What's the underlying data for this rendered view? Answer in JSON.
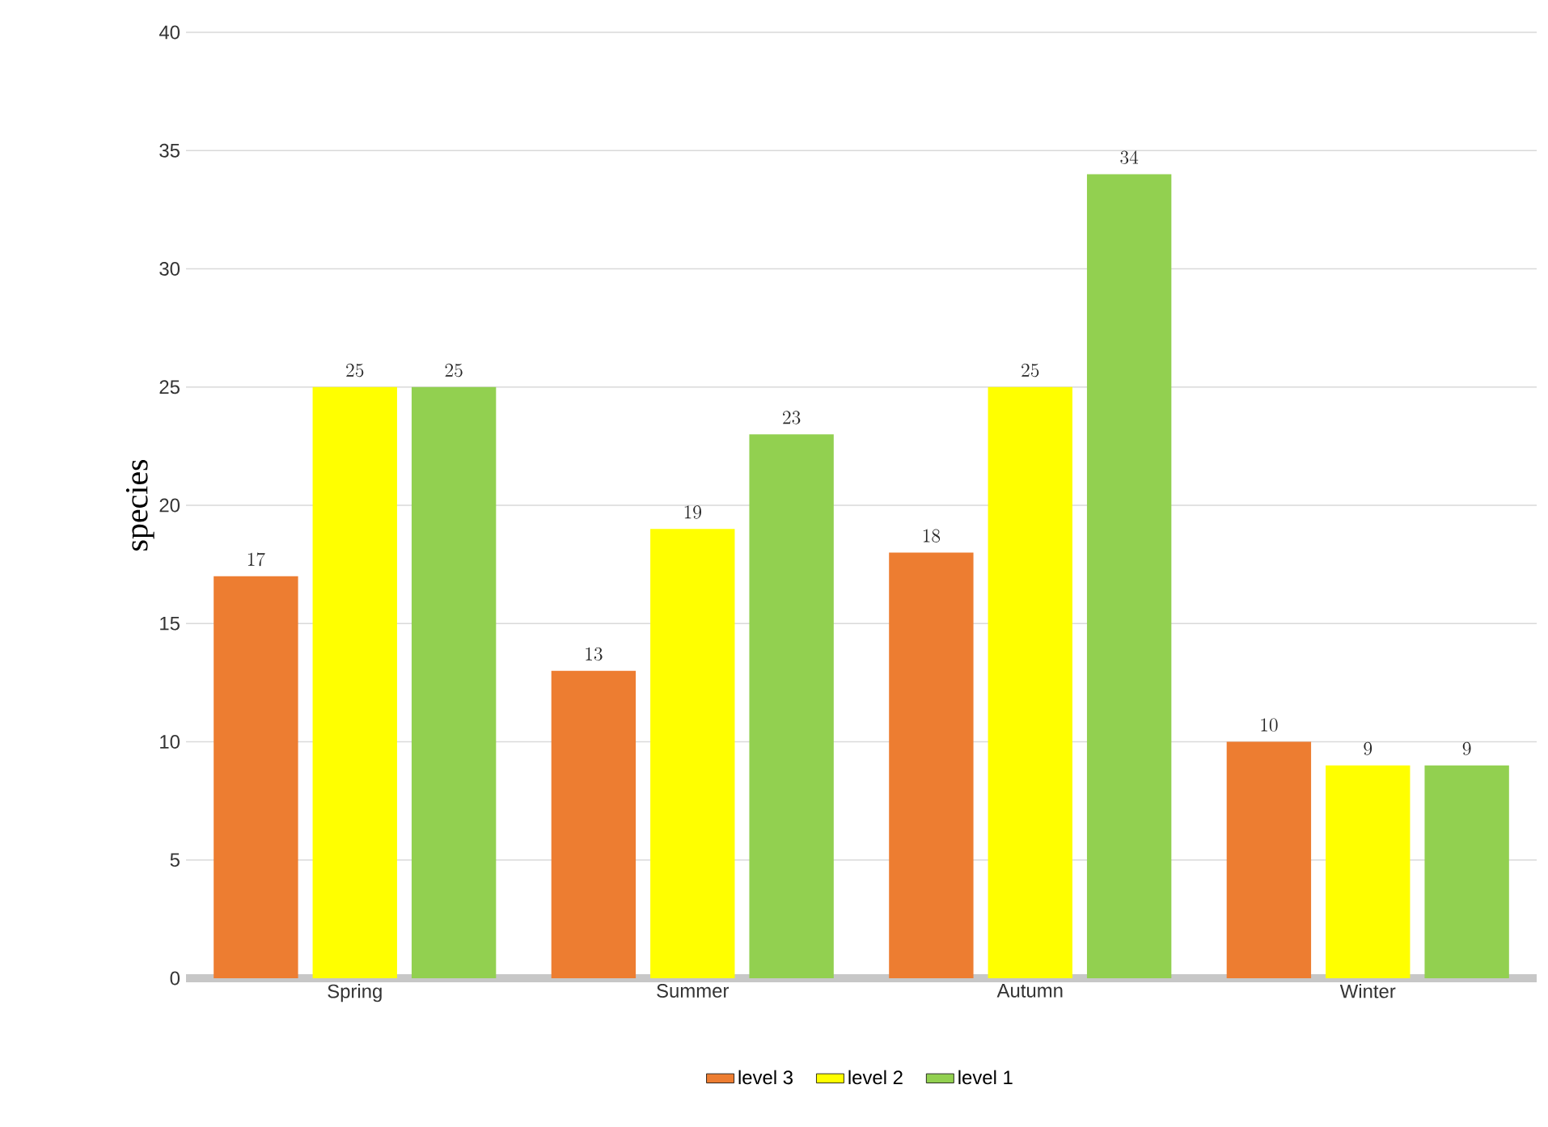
{
  "chart_data": {
    "type": "bar",
    "ylabel": "species",
    "categories": [
      "Spring",
      "Summer",
      "Autumn",
      "Winter"
    ],
    "series": [
      {
        "name": "level 3",
        "color": "#ed7d31",
        "values": [
          17,
          13,
          18,
          10
        ]
      },
      {
        "name": "level 2",
        "color": "#ffff00",
        "values": [
          25,
          19,
          25,
          9
        ]
      },
      {
        "name": "level 1",
        "color": "#92d050",
        "values": [
          25,
          23,
          34,
          9
        ]
      }
    ],
    "ylim": [
      0,
      40
    ],
    "yticks": [
      0,
      5,
      10,
      15,
      20,
      25,
      30,
      35,
      40
    ],
    "grid": "y",
    "legend": "bottom",
    "data_labels": true
  }
}
